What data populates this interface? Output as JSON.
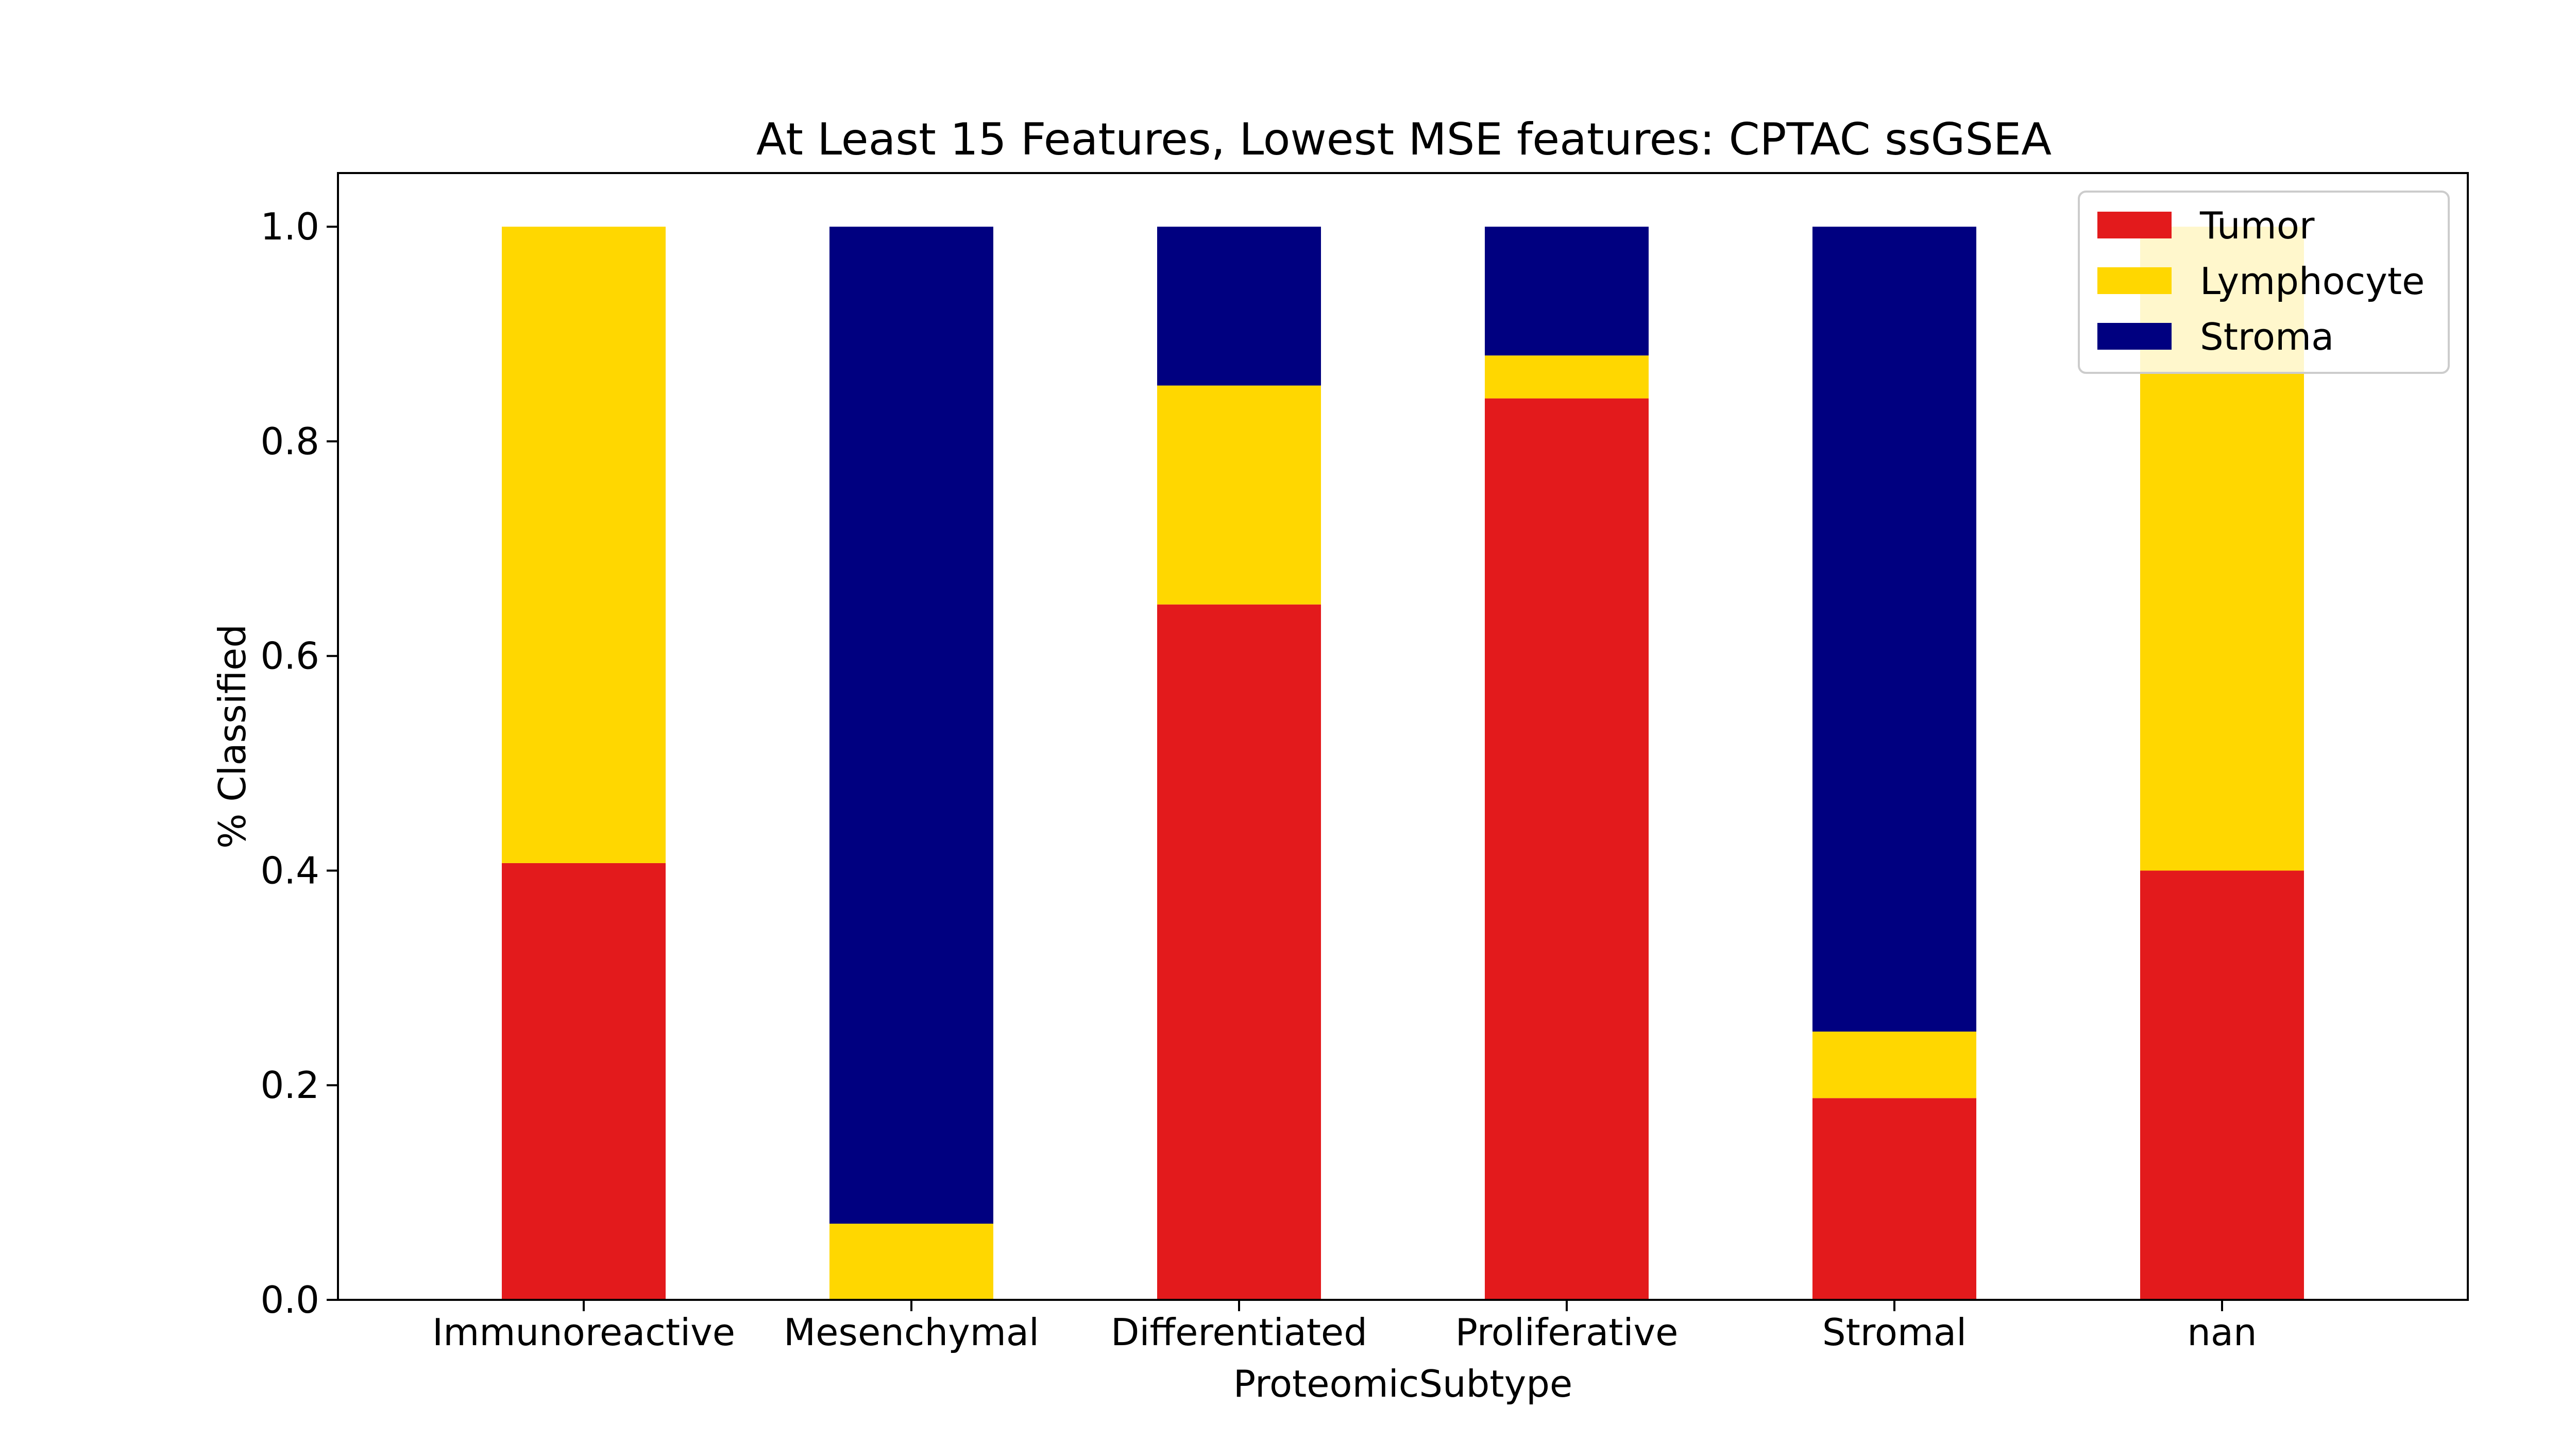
{
  "chart_data": {
    "type": "bar",
    "stacked": true,
    "title": "At Least 15 Features, Lowest MSE features: CPTAC ssGSEA",
    "xlabel": "ProteomicSubtype",
    "ylabel": "% Classified",
    "categories": [
      "Immunoreactive",
      "Mesenchymal",
      "Differentiated",
      "Proliferative",
      "Stromal",
      "nan"
    ],
    "ylim": [
      0,
      1.05
    ],
    "yticks": [
      0.0,
      0.2,
      0.4,
      0.6,
      0.8,
      1.0
    ],
    "ytick_labels": [
      "0.0",
      "0.2",
      "0.4",
      "0.6",
      "0.8",
      "1.0"
    ],
    "grid": false,
    "legend_position": "top-right",
    "series": [
      {
        "name": "Tumor",
        "color": "#e31a1c",
        "values": [
          0.407,
          0.0,
          0.648,
          0.84,
          0.188,
          0.4
        ]
      },
      {
        "name": "Lymphocyte",
        "color": "#ffd700",
        "values": [
          0.593,
          0.071,
          0.204,
          0.04,
          0.062,
          0.6
        ]
      },
      {
        "name": "Stroma",
        "color": "#000080",
        "values": [
          0.0,
          0.929,
          0.148,
          0.12,
          0.75,
          0.0
        ]
      }
    ]
  }
}
